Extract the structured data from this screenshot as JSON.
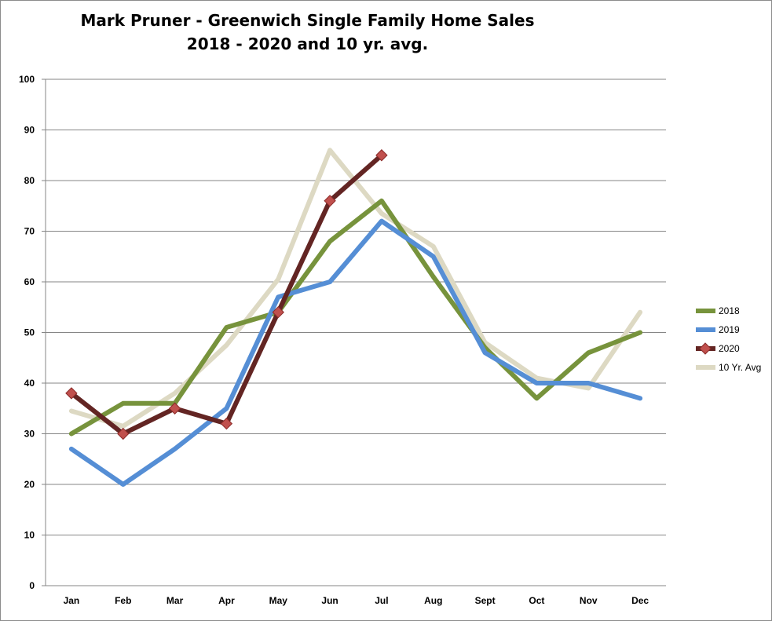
{
  "chart_data": {
    "type": "line",
    "title": "Mark Pruner - Greenwich Single Family Home Sales",
    "subtitle": "2018 - 2020 and 10 yr. avg.",
    "categories": [
      "Jan",
      "Feb",
      "Mar",
      "Apr",
      "May",
      "Jun",
      "Jul",
      "Aug",
      "Sept",
      "Oct",
      "Nov",
      "Dec"
    ],
    "ylim": [
      0,
      100
    ],
    "yticks": [
      0,
      10,
      20,
      30,
      40,
      50,
      60,
      70,
      80,
      90,
      100
    ],
    "grid": true,
    "legend_position": "right",
    "series": [
      {
        "name": "2018",
        "color": "#77933c",
        "marker": "none",
        "values": [
          30,
          36,
          36,
          51,
          54,
          68,
          76,
          61,
          47,
          37,
          46,
          50
        ]
      },
      {
        "name": "2019",
        "color": "#558ed5",
        "marker": "none",
        "values": [
          27,
          20,
          27,
          35,
          57,
          60,
          72,
          65,
          46,
          40,
          40,
          37
        ]
      },
      {
        "name": "2020",
        "color": "#632523",
        "marker": "diamond",
        "marker_color": "#c0504d",
        "values": [
          38,
          30,
          35,
          32,
          54,
          76,
          85,
          null,
          null,
          null,
          null,
          null
        ]
      },
      {
        "name": "10 Yr. Avg",
        "color": "#ddd9c3",
        "marker": "none",
        "values": [
          34.5,
          31.5,
          38,
          47.5,
          60.5,
          86,
          73.5,
          67,
          48,
          41,
          39,
          54
        ]
      }
    ]
  }
}
